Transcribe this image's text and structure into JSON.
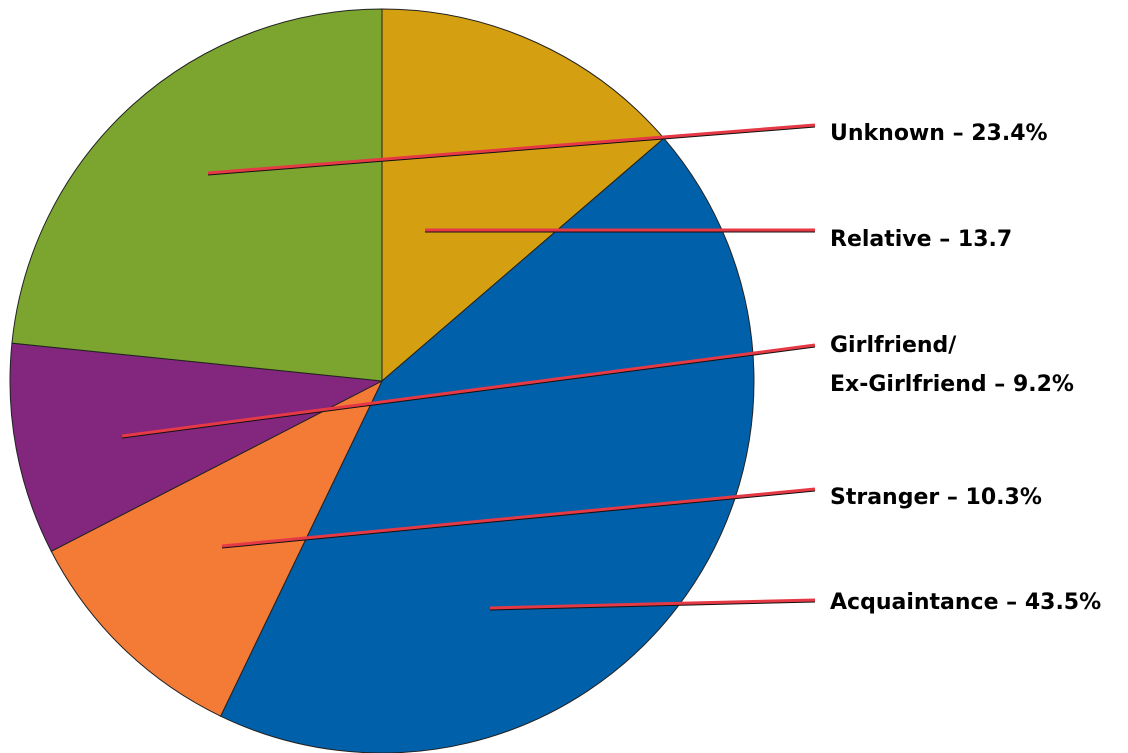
{
  "chart_data": {
    "type": "pie",
    "title": "",
    "slices": [
      {
        "name": "Relative",
        "value": 13.7,
        "label_lines": [
          "Relative – 13.7"
        ],
        "color": "#D4A012"
      },
      {
        "name": "Acquaintance",
        "value": 43.5,
        "label_lines": [
          "Acquaintance – 43.5%"
        ],
        "color": "#0060AA"
      },
      {
        "name": "Stranger",
        "value": 10.3,
        "label_lines": [
          "Stranger – 10.3%"
        ],
        "color": "#F47B36"
      },
      {
        "name": "Girlfriend/Ex-Girlfriend",
        "value": 9.2,
        "label_lines": [
          "Girlfriend/",
          "Ex-Girlfriend – 9.2%"
        ],
        "color": "#82267E"
      },
      {
        "name": "Unknown",
        "value": 23.4,
        "label_lines": [
          "Unknown – 23.4%"
        ],
        "color": "#7BA52E"
      }
    ],
    "start_angle_deg": 0,
    "direction": "clockwise",
    "leader_line_color": "#E63946",
    "outline_color": "#222222"
  }
}
